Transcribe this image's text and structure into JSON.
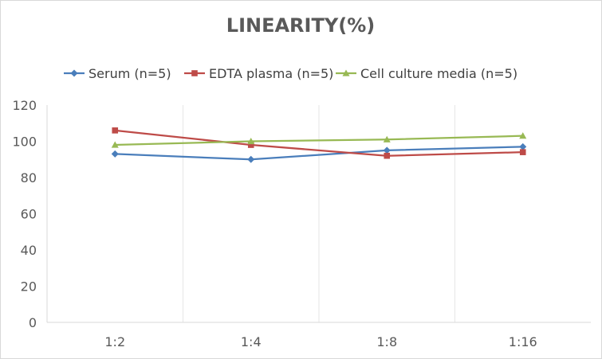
{
  "chart_data": {
    "type": "line",
    "title": "LINEARITY(%)",
    "categories": [
      "1:2",
      "1:4",
      "1:8",
      "1:16"
    ],
    "series": [
      {
        "name": "Serum (n=5)",
        "values": [
          93,
          90,
          95,
          97
        ],
        "color": "#4a7ebb",
        "marker": "diamond"
      },
      {
        "name": "EDTA plasma (n=5)",
        "values": [
          106,
          98,
          92,
          94
        ],
        "color": "#be4b48",
        "marker": "square"
      },
      {
        "name": "Cell culture media (n=5)",
        "values": [
          98,
          100,
          101,
          103
        ],
        "color": "#98b954",
        "marker": "triangle"
      }
    ],
    "ylim": [
      0,
      120
    ],
    "yticks": [
      0,
      20,
      40,
      60,
      80,
      100,
      120
    ],
    "legend": "top",
    "grid": "vertical"
  }
}
